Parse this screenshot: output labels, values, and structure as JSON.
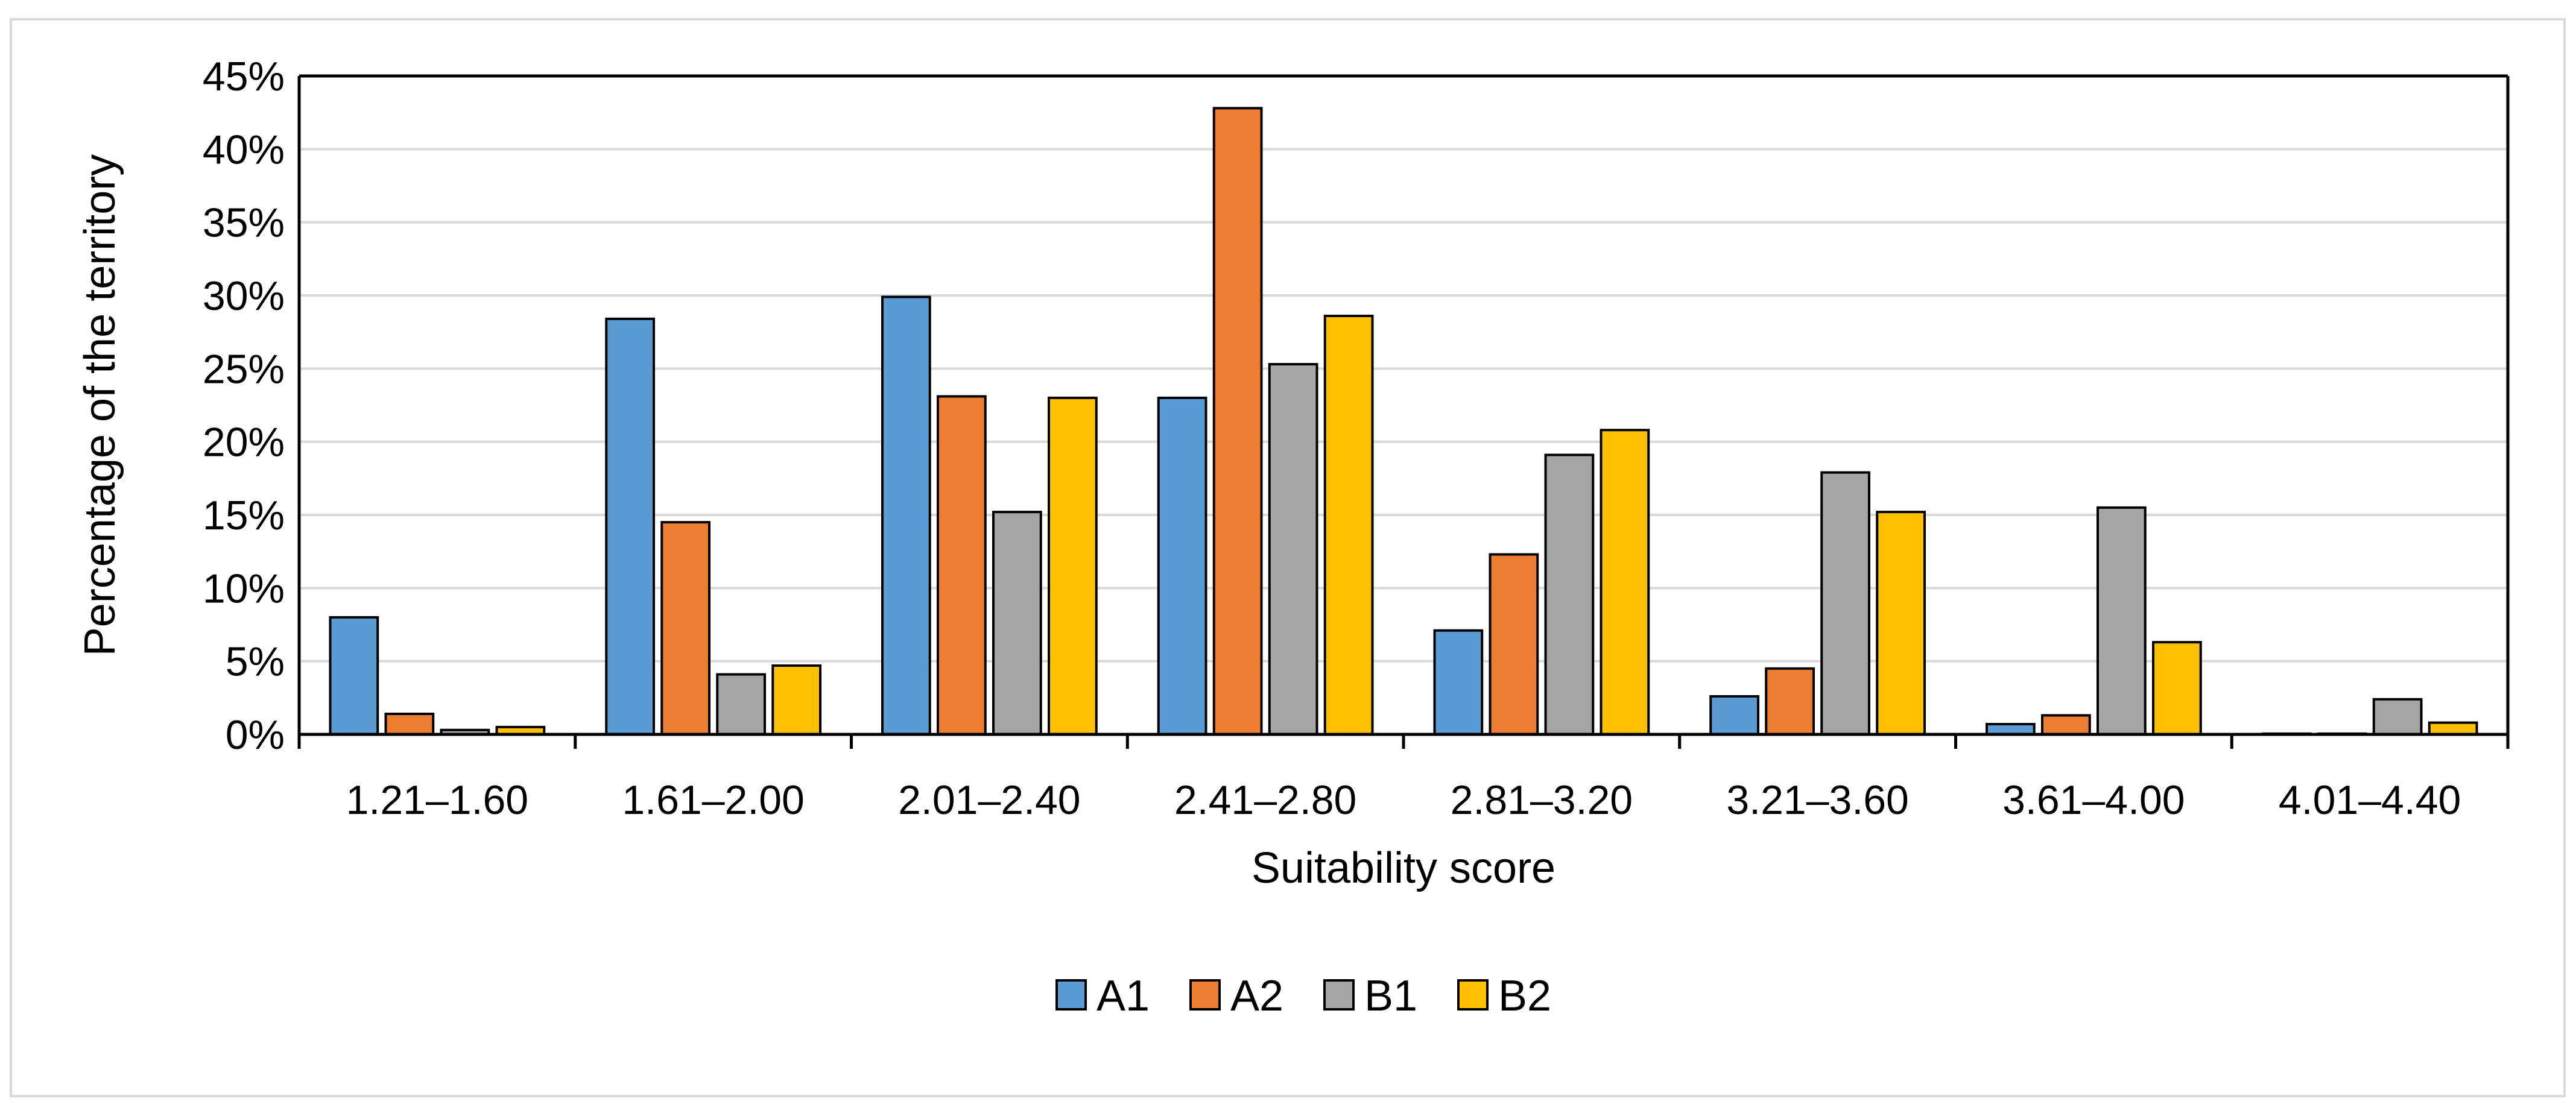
{
  "chart_data": {
    "type": "bar",
    "title": "",
    "xlabel": "Suitability score",
    "ylabel": "Percentage of the territory",
    "categories": [
      "1.21–1.60",
      "1.61–2.00",
      "2.01–2.40",
      "2.41–2.80",
      "2.81–3.20",
      "3.21–3.60",
      "3.61–4.00",
      "4.01–4.40"
    ],
    "series": [
      {
        "name": "A1",
        "color": "#5B9BD5",
        "values": [
          8.0,
          28.4,
          29.9,
          23.0,
          7.1,
          2.6,
          0.7,
          0.05
        ]
      },
      {
        "name": "A2",
        "color": "#ED7D31",
        "values": [
          1.4,
          14.5,
          23.1,
          42.8,
          12.3,
          4.5,
          1.3,
          0.05
        ]
      },
      {
        "name": "B1",
        "color": "#A5A5A5",
        "values": [
          0.3,
          4.1,
          15.2,
          25.3,
          19.1,
          17.9,
          15.5,
          2.4
        ]
      },
      {
        "name": "B2",
        "color": "#FFC000",
        "values": [
          0.5,
          4.7,
          23.0,
          28.6,
          20.8,
          15.2,
          6.3,
          0.8
        ]
      }
    ],
    "ylim": [
      0,
      45
    ],
    "yticks": [
      "0%",
      "5%",
      "10%",
      "15%",
      "20%",
      "25%",
      "30%",
      "35%",
      "40%",
      "45%"
    ],
    "grid": true,
    "legend_position": "bottom-center"
  }
}
